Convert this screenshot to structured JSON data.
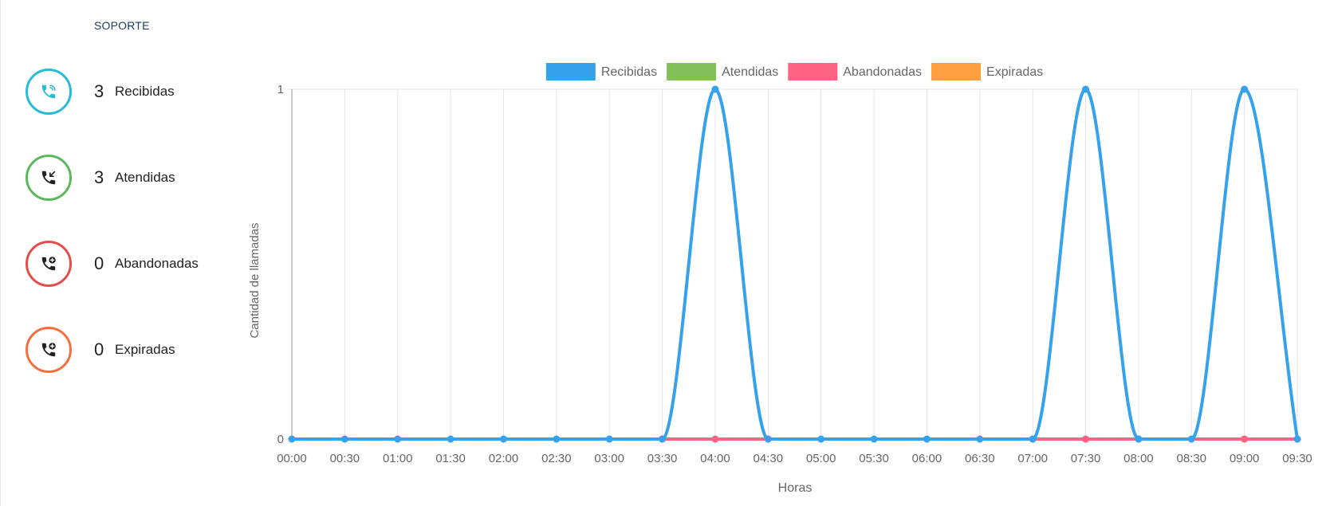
{
  "section": {
    "title": "SOPORTE"
  },
  "stats": [
    {
      "count": "3",
      "label": "Recibidas",
      "color": "#26bcd7",
      "icon": "phone-ringing-icon"
    },
    {
      "count": "3",
      "label": "Atendidas",
      "color": "#5cb85c",
      "icon": "phone-incoming-icon"
    },
    {
      "count": "0",
      "label": "Abandonadas",
      "color": "#e74c4c",
      "icon": "phone-plus-icon"
    },
    {
      "count": "0",
      "label": "Expiradas",
      "color": "#f2703f",
      "icon": "phone-plus-icon"
    }
  ],
  "chart_data": {
    "type": "line",
    "xlabel": "Horas",
    "ylabel": "Cantidad de llamadas",
    "x": [
      "00:00",
      "00:30",
      "01:00",
      "01:30",
      "02:00",
      "02:30",
      "03:00",
      "03:30",
      "04:00",
      "04:30",
      "05:00",
      "05:30",
      "06:00",
      "06:30",
      "07:00",
      "07:30",
      "08:00",
      "08:30",
      "09:00",
      "09:30"
    ],
    "ylim": [
      0,
      1
    ],
    "yticks": [
      "0",
      "1"
    ],
    "grid": true,
    "legend_position": "top",
    "series": [
      {
        "name": "Recibidas",
        "color": "#36a2eb",
        "values": [
          0,
          0,
          0,
          0,
          0,
          0,
          0,
          0,
          1,
          0,
          0,
          0,
          0,
          0,
          0,
          1,
          0,
          0,
          1,
          0
        ]
      },
      {
        "name": "Atendidas",
        "color": "#84c05a",
        "values": [
          null,
          null,
          null,
          null,
          null,
          null,
          null,
          null,
          null,
          null,
          null,
          null,
          null,
          null,
          null,
          null,
          null,
          null,
          null,
          null
        ]
      },
      {
        "name": "Abandonadas",
        "color": "#ff6384",
        "values": [
          null,
          null,
          null,
          null,
          null,
          null,
          null,
          0,
          0,
          0,
          null,
          null,
          null,
          null,
          0,
          0,
          0,
          0,
          0,
          0
        ]
      },
      {
        "name": "Expiradas",
        "color": "#ff9f40",
        "values": [
          null,
          null,
          null,
          null,
          null,
          null,
          null,
          null,
          null,
          null,
          null,
          null,
          null,
          null,
          null,
          null,
          null,
          null,
          null,
          null
        ]
      }
    ]
  }
}
